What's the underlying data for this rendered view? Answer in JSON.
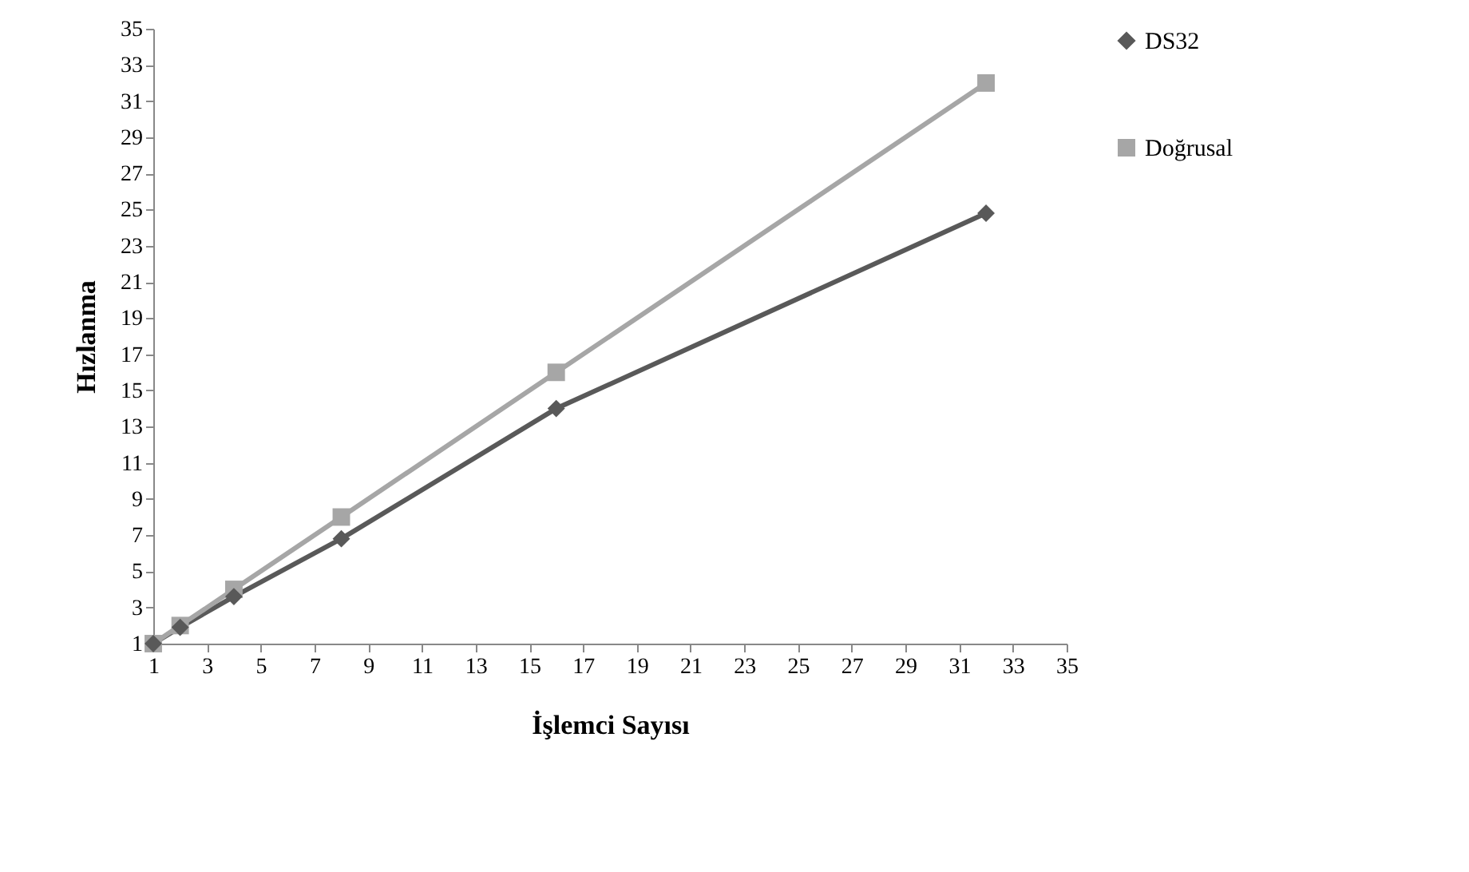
{
  "chart_data": {
    "type": "line",
    "xlabel": "İşlemci Sayısı",
    "ylabel": "Hızlanma",
    "x": [
      1,
      2,
      4,
      8,
      16,
      32
    ],
    "series": [
      {
        "name": "DS32",
        "color": "#595959",
        "marker": "diamond",
        "values": [
          1,
          1.9,
          3.6,
          6.8,
          14,
          24.8
        ]
      },
      {
        "name": "Doğrusal",
        "color": "#a6a6a6",
        "marker": "square",
        "values": [
          1,
          2,
          4,
          8,
          16,
          32
        ]
      }
    ],
    "xlim": [
      1,
      35
    ],
    "xticks": [
      1,
      3,
      5,
      7,
      9,
      11,
      13,
      15,
      17,
      19,
      21,
      23,
      25,
      27,
      29,
      31,
      33,
      35
    ],
    "ylim": [
      1,
      35
    ],
    "yticks": [
      1,
      3,
      5,
      7,
      9,
      11,
      13,
      15,
      17,
      19,
      21,
      23,
      25,
      27,
      29,
      31,
      33,
      35
    ],
    "grid": false,
    "legend": "right",
    "line_style": "solid"
  }
}
